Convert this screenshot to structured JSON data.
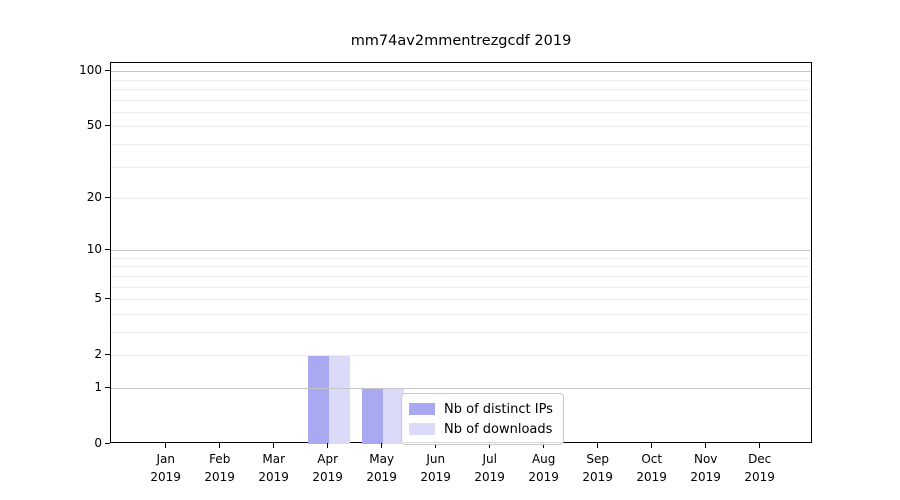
{
  "chart_data": {
    "type": "bar",
    "title": "mm74av2mmentrezgcdf 2019",
    "categories": [
      "Jan",
      "Feb",
      "Mar",
      "Apr",
      "May",
      "Jun",
      "Jul",
      "Aug",
      "Sep",
      "Oct",
      "Nov",
      "Dec"
    ],
    "year_label": "2019",
    "series": [
      {
        "name": "Nb of distinct IPs",
        "color": "#a9a9f2",
        "values": [
          0,
          0,
          0,
          2,
          1,
          0,
          0,
          0,
          0,
          0,
          0,
          0
        ]
      },
      {
        "name": "Nb of downloads",
        "color": "#dbdbf9",
        "values": [
          0,
          0,
          0,
          2,
          1,
          0,
          0,
          0,
          0,
          0,
          0,
          0
        ]
      }
    ],
    "yscale": "log1p",
    "y_ticks": [
      0,
      1,
      2,
      5,
      10,
      20,
      50,
      100
    ],
    "ylim": [
      0,
      110
    ],
    "xlabel": "",
    "ylabel": "",
    "grid": "horizontal",
    "legend_position": "inside-bottom-center"
  }
}
